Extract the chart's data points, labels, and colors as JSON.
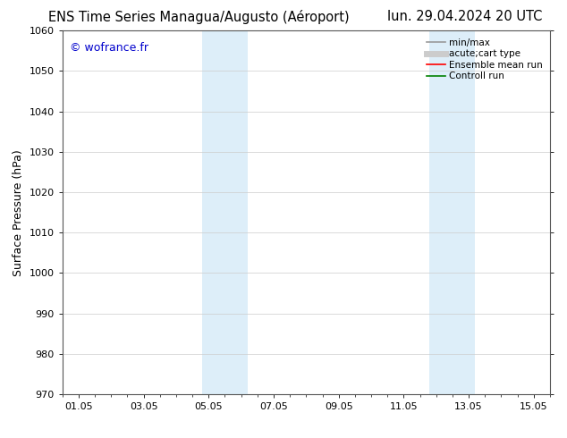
{
  "title_left": "ENS Time Series Managua/Augusto (Aéroport)",
  "title_right": "lun. 29.04.2024 20 UTC",
  "ylabel": "Surface Pressure (hPa)",
  "ylim": [
    970,
    1060
  ],
  "yticks": [
    970,
    980,
    990,
    1000,
    1010,
    1020,
    1030,
    1040,
    1050,
    1060
  ],
  "xtick_labels": [
    "01.05",
    "03.05",
    "05.05",
    "07.05",
    "09.05",
    "11.05",
    "13.05",
    "15.05"
  ],
  "xtick_positions": [
    0,
    2,
    4,
    6,
    8,
    10,
    12,
    14
  ],
  "xlim": [
    -0.5,
    14.5
  ],
  "shaded_bands": [
    {
      "x_start": 3.8,
      "x_end": 5.2
    },
    {
      "x_start": 10.8,
      "x_end": 12.2
    }
  ],
  "shade_color": "#ddeef9",
  "watermark_text": "© wofrance.fr",
  "watermark_color": "#0000cc",
  "legend_entries": [
    {
      "label": "min/max",
      "color": "#999999",
      "lw": 1.2
    },
    {
      "label": "acute;cart type",
      "color": "#cccccc",
      "lw": 5
    },
    {
      "label": "Ensemble mean run",
      "color": "#ff0000",
      "lw": 1.2
    },
    {
      "label": "Controll run",
      "color": "#008000",
      "lw": 1.2
    }
  ],
  "bg_color": "#ffffff",
  "grid_color": "#cccccc",
  "title_fontsize": 10.5,
  "ylabel_fontsize": 9,
  "tick_fontsize": 8,
  "legend_fontsize": 7.5,
  "watermark_fontsize": 9
}
